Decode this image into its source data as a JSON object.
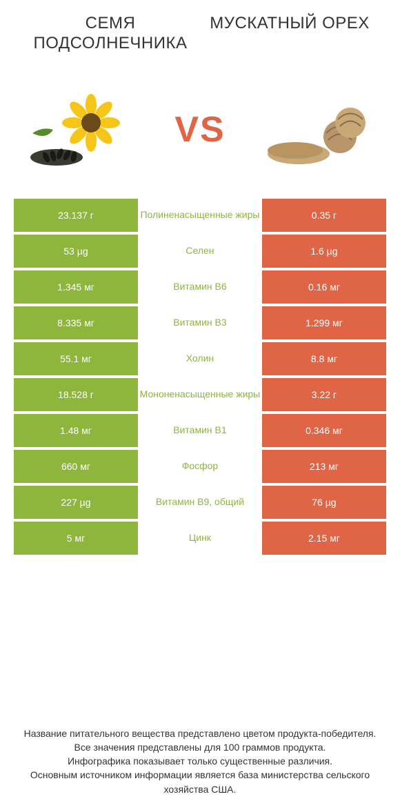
{
  "titles": {
    "left": "СЕМЯ ПОДСОЛНЕЧНИКА",
    "right": "МУСКАТНЫЙ ОРЕХ"
  },
  "vs": "VS",
  "colors": {
    "left_bg": "#8eb63c",
    "right_bg": "#e06546",
    "left_text": "#8eb63c",
    "right_text": "#e06546",
    "vs_color": "#e06546",
    "background": "#ffffff",
    "body_text": "#333333"
  },
  "fonts": {
    "title_size": 24,
    "vs_size": 52,
    "cell_size": 14,
    "footer_size": 14
  },
  "rows": [
    {
      "left": "23.137 г",
      "label": "Полиненасыщенные жиры",
      "right": "0.35 г",
      "winner": "left"
    },
    {
      "left": "53 µg",
      "label": "Селен",
      "right": "1.6 µg",
      "winner": "left"
    },
    {
      "left": "1.345 мг",
      "label": "Витамин B6",
      "right": "0.16 мг",
      "winner": "left"
    },
    {
      "left": "8.335 мг",
      "label": "Витамин B3",
      "right": "1.299 мг",
      "winner": "left"
    },
    {
      "left": "55.1 мг",
      "label": "Холин",
      "right": "8.8 мг",
      "winner": "left"
    },
    {
      "left": "18.528 г",
      "label": "Мононенасыщенные жиры",
      "right": "3.22 г",
      "winner": "left"
    },
    {
      "left": "1.48 мг",
      "label": "Витамин B1",
      "right": "0.346 мг",
      "winner": "left"
    },
    {
      "left": "660 мг",
      "label": "Фосфор",
      "right": "213 мг",
      "winner": "left"
    },
    {
      "left": "227 µg",
      "label": "Витамин B9, общий",
      "right": "76 µg",
      "winner": "left"
    },
    {
      "left": "5 мг",
      "label": "Цинк",
      "right": "2.15 мг",
      "winner": "left"
    }
  ],
  "footer": [
    "Название питательного вещества представлено цветом продукта-победителя.",
    "Все значения представлены для 100 граммов продукта.",
    "Инфографика показывает только существенные различия.",
    "Основным источником информации является база министерства сельского хозяйства США."
  ]
}
